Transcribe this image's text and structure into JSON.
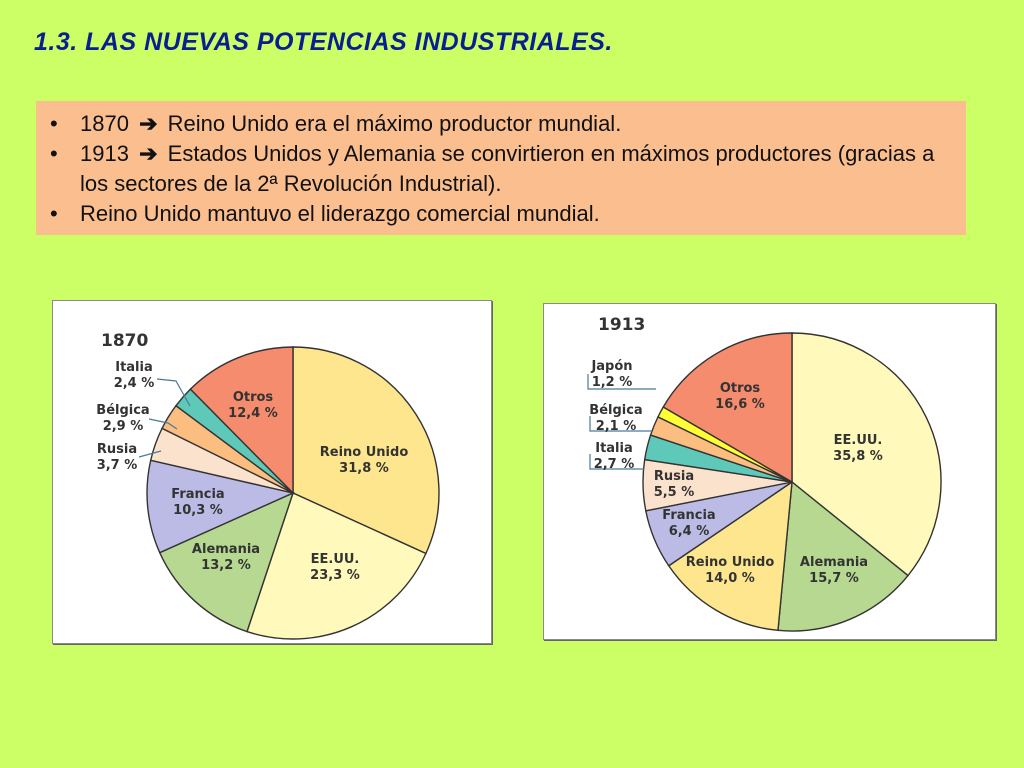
{
  "slide": {
    "title": "1.3. LAS NUEVAS POTENCIAS INDUSTRIALES."
  },
  "info_box": {
    "bullet": "•",
    "arrow": "➔",
    "items": [
      {
        "lead": "1870",
        "text": "Reino Unido era el máximo productor mundial."
      },
      {
        "lead": "1913",
        "text": "Estados Unidos y Alemania se convirtieron en máximos productores (gracias a los sectores de la 2ª Revolución Industrial)."
      },
      {
        "lead": "",
        "text": "Reino Unido mantuvo el liderazgo comercial mundial."
      }
    ]
  },
  "chart_data": [
    {
      "type": "pie",
      "title": "1870",
      "slices": [
        {
          "name": "Reino Unido",
          "label": "31,8 %",
          "value": 31.8,
          "color": "#fde68d"
        },
        {
          "name": "EE.UU.",
          "label": "23,3 %",
          "value": 23.3,
          "color": "#fffabb"
        },
        {
          "name": "Alemania",
          "label": "13,2 %",
          "value": 13.2,
          "color": "#b6d891"
        },
        {
          "name": "Francia",
          "label": "10,3 %",
          "value": 10.3,
          "color": "#bbbbe6"
        },
        {
          "name": "Rusia",
          "label": "3,7 %",
          "value": 3.7,
          "color": "#fbe2cc"
        },
        {
          "name": "Bélgica",
          "label": "2,9 %",
          "value": 2.9,
          "color": "#fbbd80"
        },
        {
          "name": "Italia",
          "label": "2,4 %",
          "value": 2.4,
          "color": "#5ec9b8"
        },
        {
          "name": "Otros",
          "label": "12,4 %",
          "value": 12.4,
          "color": "#f58c6e"
        }
      ]
    },
    {
      "type": "pie",
      "title": "1913",
      "slices": [
        {
          "name": "EE.UU.",
          "label": "35,8 %",
          "value": 35.8,
          "color": "#fffabb"
        },
        {
          "name": "Alemania",
          "label": "15,7 %",
          "value": 15.7,
          "color": "#b6d891"
        },
        {
          "name": "Reino Unido",
          "label": "14,0 %",
          "value": 14.0,
          "color": "#fde68d"
        },
        {
          "name": "Francia",
          "label": "6,4 %",
          "value": 6.4,
          "color": "#bbbbe6"
        },
        {
          "name": "Rusia",
          "label": "5,5 %",
          "value": 5.5,
          "color": "#fbe2cc"
        },
        {
          "name": "Italia",
          "label": "2,7 %",
          "value": 2.7,
          "color": "#5ec9b8"
        },
        {
          "name": "Bélgica",
          "label": "2,1 %",
          "value": 2.1,
          "color": "#fbbd80"
        },
        {
          "name": "Japón",
          "label": "1,2 %",
          "value": 1.2,
          "color": "#ffff33"
        },
        {
          "name": "Otros",
          "label": "16,6 %",
          "value": 16.6,
          "color": "#f58c6e"
        }
      ]
    }
  ]
}
